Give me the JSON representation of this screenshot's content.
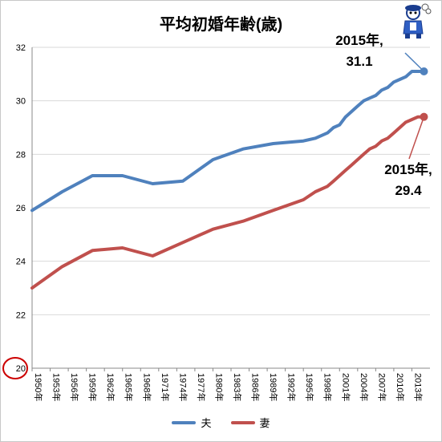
{
  "chart_data": {
    "type": "line",
    "title": "平均初婚年齢(歳)",
    "xlabel": "",
    "ylabel": "",
    "ylim": [
      20,
      32
    ],
    "yticks": [
      20,
      22,
      24,
      26,
      28,
      30,
      32
    ],
    "grid": "horizontal",
    "legend": "bottom",
    "highlighted_tick": 20,
    "x_tick_labels": [
      "1950年",
      "1953年",
      "1956年",
      "1959年",
      "1962年",
      "1965年",
      "1968年",
      "1971年",
      "1974年",
      "1977年",
      "1980年",
      "1983年",
      "1986年",
      "1989年",
      "1992年",
      "1995年",
      "1998年",
      "2001年",
      "2004年",
      "2007年",
      "2010年",
      "2013年"
    ],
    "x": [
      1950,
      1955,
      1960,
      1965,
      1970,
      1975,
      1980,
      1985,
      1990,
      1995,
      1997,
      1999,
      2000,
      2001,
      2002,
      2003,
      2004,
      2005,
      2006,
      2007,
      2008,
      2009,
      2010,
      2011,
      2012,
      2013,
      2014,
      2015
    ],
    "series": [
      {
        "name": "夫",
        "color": "#4f81bd",
        "values": [
          25.9,
          26.6,
          27.2,
          27.2,
          26.9,
          27.0,
          27.8,
          28.2,
          28.4,
          28.5,
          28.6,
          28.8,
          29.0,
          29.1,
          29.4,
          29.6,
          29.8,
          30.0,
          30.1,
          30.2,
          30.4,
          30.5,
          30.7,
          30.8,
          30.9,
          31.1,
          31.1,
          31.1
        ]
      },
      {
        "name": "妻",
        "color": "#c0504d",
        "values": [
          23.0,
          23.8,
          24.4,
          24.5,
          24.2,
          24.7,
          25.2,
          25.5,
          25.9,
          26.3,
          26.6,
          26.8,
          27.0,
          27.2,
          27.4,
          27.6,
          27.8,
          28.0,
          28.2,
          28.3,
          28.5,
          28.6,
          28.8,
          29.0,
          29.2,
          29.3,
          29.4,
          29.4
        ]
      }
    ],
    "annotations": [
      {
        "line1": "2015年,",
        "line2": "31.1",
        "series": "夫"
      },
      {
        "line1": "2015年,",
        "line2": "29.4",
        "series": "妻"
      }
    ]
  }
}
